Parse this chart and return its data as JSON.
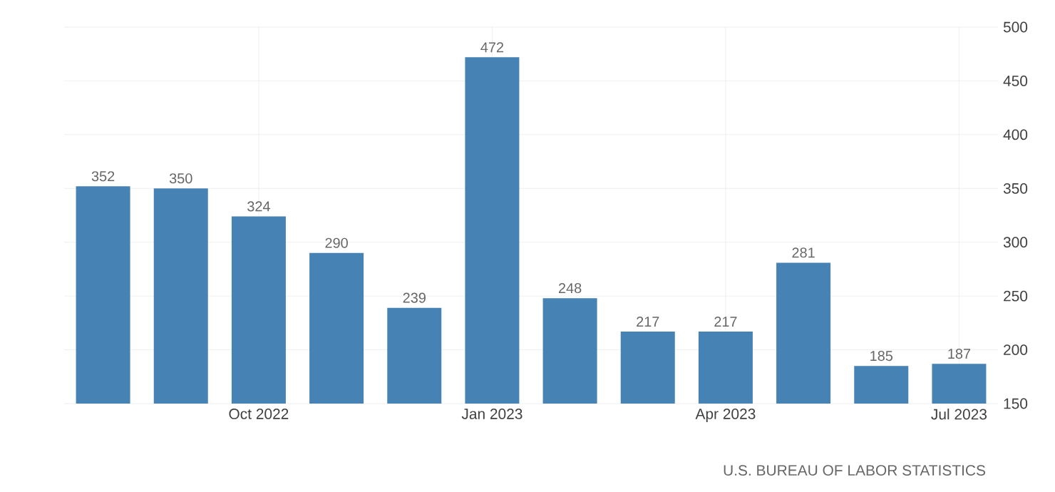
{
  "chart_data": {
    "type": "bar",
    "categories": [
      null,
      null,
      "Oct 2022",
      null,
      null,
      "Jan 2023",
      null,
      null,
      "Apr 2023",
      null,
      null,
      "Jul 2023"
    ],
    "values": [
      352,
      350,
      324,
      290,
      239,
      472,
      248,
      217,
      217,
      281,
      185,
      187
    ],
    "color": "#4682b4",
    "ylim": [
      150,
      500
    ],
    "yticks": [
      150,
      200,
      250,
      300,
      350,
      400,
      450,
      500
    ],
    "grid": true,
    "data_labels": true,
    "annotations": [
      "U.S. BUREAU OF LABOR STATISTICS"
    ]
  }
}
